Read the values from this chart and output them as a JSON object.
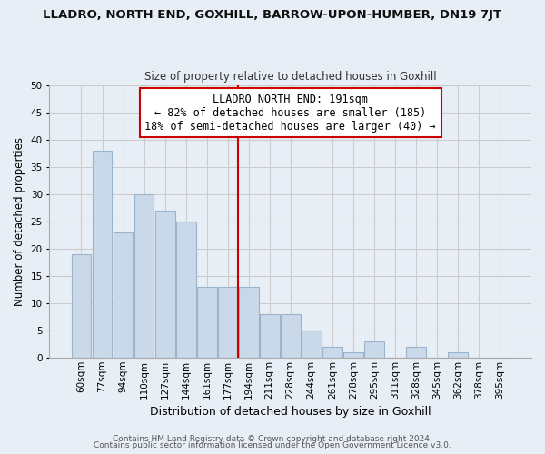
{
  "title": "LLADRO, NORTH END, GOXHILL, BARROW-UPON-HUMBER, DN19 7JT",
  "subtitle": "Size of property relative to detached houses in Goxhill",
  "xlabel": "Distribution of detached houses by size in Goxhill",
  "ylabel": "Number of detached properties",
  "bar_labels": [
    "60sqm",
    "77sqm",
    "94sqm",
    "110sqm",
    "127sqm",
    "144sqm",
    "161sqm",
    "177sqm",
    "194sqm",
    "211sqm",
    "228sqm",
    "244sqm",
    "261sqm",
    "278sqm",
    "295sqm",
    "311sqm",
    "328sqm",
    "345sqm",
    "362sqm",
    "378sqm",
    "395sqm"
  ],
  "bar_values": [
    19,
    38,
    23,
    30,
    27,
    25,
    13,
    13,
    13,
    8,
    8,
    5,
    2,
    1,
    3,
    0,
    2,
    0,
    1,
    0,
    0
  ],
  "bar_color": "#c9d9ea",
  "bar_edge_color": "#9ab4cc",
  "vline_color": "#cc0000",
  "annotation_title": "LLADRO NORTH END: 191sqm",
  "annotation_line1": "← 82% of detached houses are smaller (185)",
  "annotation_line2": "18% of semi-detached houses are larger (40) →",
  "annotation_box_facecolor": "#ffffff",
  "annotation_box_edgecolor": "#cc0000",
  "ylim": [
    0,
    50
  ],
  "yticks": [
    0,
    5,
    10,
    15,
    20,
    25,
    30,
    35,
    40,
    45,
    50
  ],
  "grid_color": "#cccccc",
  "plot_bg_color": "#e8eef5",
  "fig_bg_color": "#e8eef5",
  "footer1": "Contains HM Land Registry data © Crown copyright and database right 2024.",
  "footer2": "Contains public sector information licensed under the Open Government Licence v3.0.",
  "title_fontsize": 9.5,
  "subtitle_fontsize": 8.5,
  "xlabel_fontsize": 9,
  "ylabel_fontsize": 8.5,
  "tick_fontsize": 7.5,
  "footer_fontsize": 6.5,
  "annotation_fontsize": 8.5
}
